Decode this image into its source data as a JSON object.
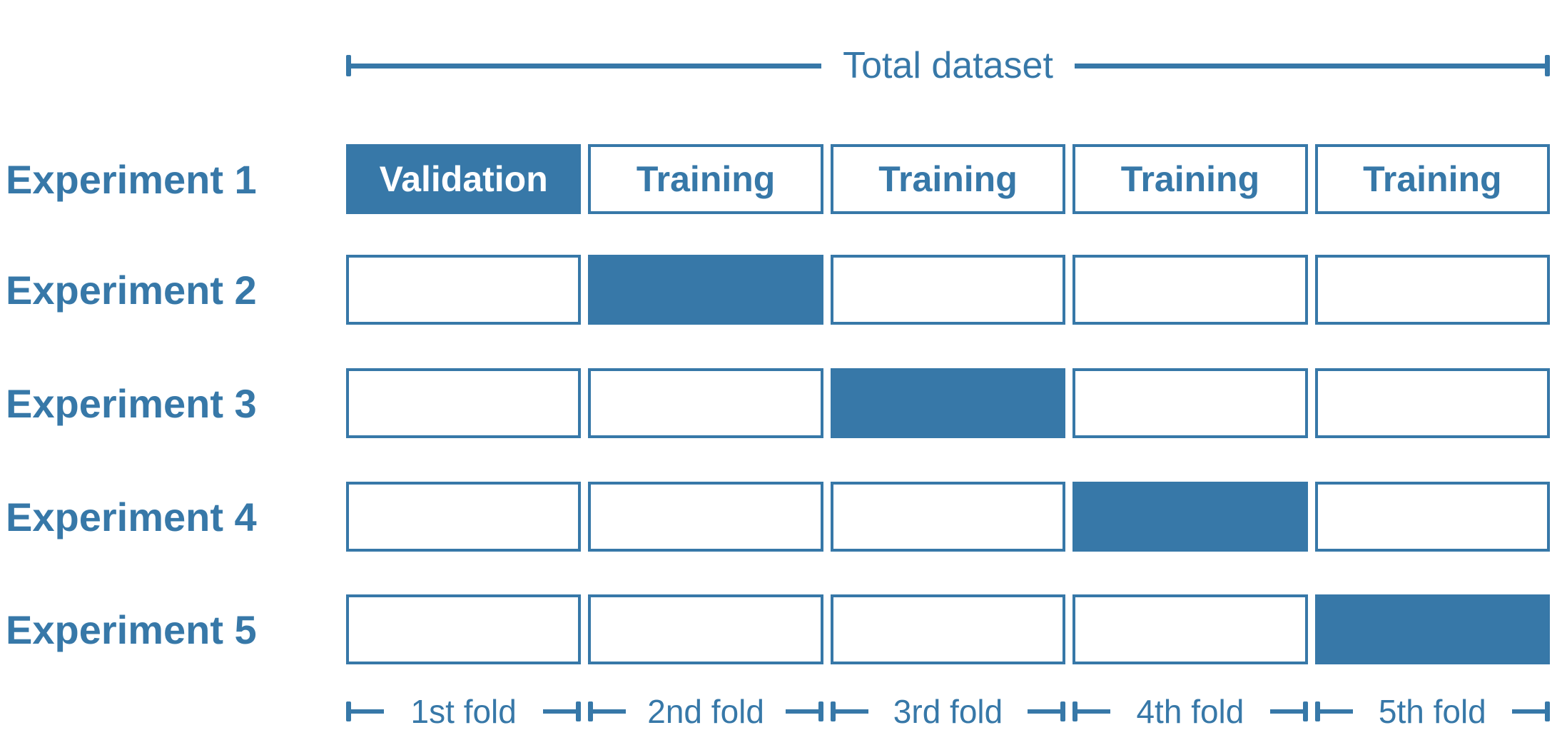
{
  "colors": {
    "brand": "#3778A8",
    "cell_background": "#FFFFFF",
    "filled_cell_text": "#FFFFFF"
  },
  "header": {
    "title": "Total dataset"
  },
  "experiments": [
    {
      "label": "Experiment 1",
      "highlighted_fold": 1,
      "cells": [
        "Validation",
        "Training",
        "Training",
        "Training",
        "Training"
      ]
    },
    {
      "label": "Experiment 2",
      "highlighted_fold": 2,
      "cells": [
        "",
        "",
        "",
        "",
        ""
      ]
    },
    {
      "label": "Experiment 3",
      "highlighted_fold": 3,
      "cells": [
        "",
        "",
        "",
        "",
        ""
      ]
    },
    {
      "label": "Experiment 4",
      "highlighted_fold": 4,
      "cells": [
        "",
        "",
        "",
        "",
        ""
      ]
    },
    {
      "label": "Experiment 5",
      "highlighted_fold": 5,
      "cells": [
        "",
        "",
        "",
        "",
        ""
      ]
    }
  ],
  "folds": [
    "1st fold",
    "2nd fold",
    "3rd fold",
    "4th fold",
    "5th fold"
  ]
}
